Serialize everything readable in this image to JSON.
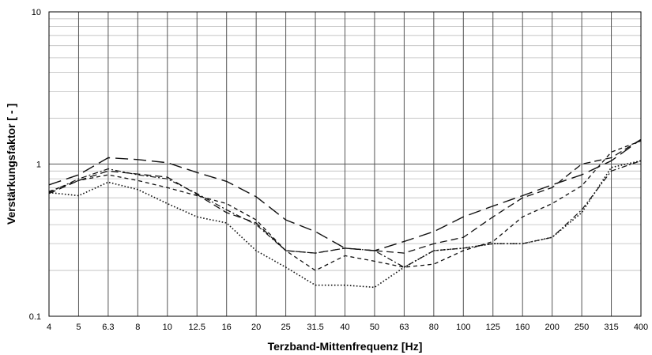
{
  "chart_data": {
    "type": "line",
    "title": "",
    "xlabel": "Terzband-Mittenfrequenz [Hz]",
    "ylabel": "Verstärkungsfaktor [ - ]",
    "categories": [
      "4",
      "5",
      "6.3",
      "8",
      "10",
      "12.5",
      "16",
      "20",
      "25",
      "31.5",
      "40",
      "50",
      "63",
      "80",
      "100",
      "125",
      "160",
      "200",
      "250",
      "315",
      "400"
    ],
    "y_scale": "log",
    "ylim": [
      0.1,
      10
    ],
    "y_ticks": [
      "0.1",
      "1",
      "10"
    ],
    "grid": true,
    "legend": "none",
    "series": [
      {
        "style": "long-dash",
        "values": [
          0.73,
          0.85,
          1.1,
          1.07,
          1.02,
          0.88,
          0.77,
          0.61,
          0.43,
          0.36,
          0.28,
          0.27,
          0.31,
          0.36,
          0.45,
          0.53,
          0.62,
          0.73,
          0.85,
          1.05,
          1.45
        ]
      },
      {
        "style": "medium-dash",
        "values": [
          0.64,
          0.78,
          0.9,
          0.86,
          0.82,
          0.63,
          0.48,
          0.41,
          0.27,
          0.26,
          0.28,
          0.27,
          0.26,
          0.3,
          0.33,
          0.45,
          0.6,
          0.7,
          1.0,
          1.1,
          1.45
        ]
      },
      {
        "style": "short-dash",
        "values": [
          0.66,
          0.78,
          0.85,
          0.78,
          0.7,
          0.62,
          0.55,
          0.43,
          0.27,
          0.2,
          0.25,
          0.23,
          0.21,
          0.22,
          0.27,
          0.31,
          0.45,
          0.55,
          0.72,
          1.2,
          1.42
        ]
      },
      {
        "style": "dot-dash",
        "values": [
          0.65,
          0.8,
          0.93,
          0.85,
          0.8,
          0.64,
          0.5,
          0.4,
          0.27,
          0.26,
          0.28,
          0.27,
          0.21,
          0.27,
          0.28,
          0.3,
          0.3,
          0.33,
          0.5,
          0.9,
          1.05
        ]
      },
      {
        "style": "dotted",
        "values": [
          0.65,
          0.62,
          0.76,
          0.68,
          0.55,
          0.45,
          0.41,
          0.27,
          0.21,
          0.16,
          0.16,
          0.155,
          0.21,
          0.27,
          0.28,
          0.3,
          0.3,
          0.33,
          0.48,
          0.95,
          1.05
        ]
      }
    ]
  }
}
